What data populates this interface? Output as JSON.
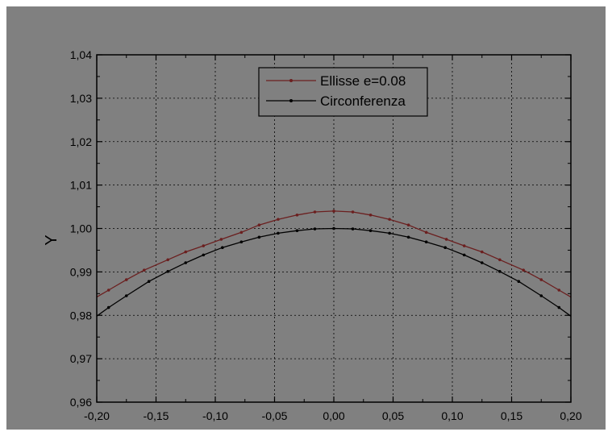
{
  "colors": {
    "page_background": "#ffffff",
    "figure_background": "#808080",
    "grid": "#000000",
    "axis": "#000000",
    "ellipse_series": "#6b1f1f",
    "circle_series": "#000000"
  },
  "chart_data": {
    "type": "line",
    "title": "",
    "xlabel": "",
    "ylabel": "Y",
    "xlim": [
      -0.2,
      0.2
    ],
    "ylim": [
      0.96,
      1.04
    ],
    "x_ticks": [
      -0.2,
      -0.15,
      -0.1,
      -0.05,
      0.0,
      0.05,
      0.1,
      0.15,
      0.2
    ],
    "x_tick_labels": [
      "-0,20",
      "-0,15",
      "-0,10",
      "-0,05",
      "0,00",
      "0,05",
      "0,10",
      "0,15",
      "0,20"
    ],
    "y_ticks": [
      0.96,
      0.97,
      0.98,
      0.99,
      1.0,
      1.01,
      1.02,
      1.03,
      1.04
    ],
    "y_tick_labels": [
      "0,96",
      "0,97",
      "0,98",
      "0,99",
      "1,00",
      "1,01",
      "1,02",
      "1,03",
      "1,04"
    ],
    "grid": true,
    "legend_position": "top-center",
    "series": [
      {
        "name": "Ellisse e=0.08",
        "color": "#6b1f1f",
        "x": [
          -0.2,
          -0.19,
          -0.175,
          -0.16,
          -0.14,
          -0.125,
          -0.11,
          -0.095,
          -0.078,
          -0.063,
          -0.047,
          -0.031,
          -0.016,
          0.0,
          0.016,
          0.031,
          0.047,
          0.063,
          0.078,
          0.095,
          0.11,
          0.125,
          0.14,
          0.16,
          0.175,
          0.19,
          0.2
        ],
        "y": [
          0.9842,
          0.9858,
          0.9882,
          0.9904,
          0.9928,
          0.9946,
          0.996,
          0.9975,
          0.9991,
          1.0008,
          1.0021,
          1.0031,
          1.0038,
          1.004,
          1.0038,
          1.0031,
          1.0021,
          1.0008,
          0.9991,
          0.9975,
          0.996,
          0.9946,
          0.9928,
          0.9904,
          0.9882,
          0.9858,
          0.9842
        ]
      },
      {
        "name": "Circonferenza",
        "color": "#000000",
        "x": [
          -0.2,
          -0.19,
          -0.175,
          -0.156,
          -0.14,
          -0.125,
          -0.11,
          -0.094,
          -0.078,
          -0.063,
          -0.047,
          -0.031,
          -0.016,
          0.0,
          0.016,
          0.031,
          0.047,
          0.063,
          0.078,
          0.094,
          0.11,
          0.125,
          0.14,
          0.156,
          0.175,
          0.19,
          0.2
        ],
        "y": [
          0.9798,
          0.9818,
          0.9845,
          0.9878,
          0.9901,
          0.9921,
          0.9939,
          0.9956,
          0.9969,
          0.998,
          0.9989,
          0.9995,
          0.9999,
          1.0,
          0.9999,
          0.9995,
          0.9989,
          0.998,
          0.9969,
          0.9956,
          0.9939,
          0.9921,
          0.9901,
          0.9878,
          0.9845,
          0.9818,
          0.9798
        ]
      }
    ]
  }
}
